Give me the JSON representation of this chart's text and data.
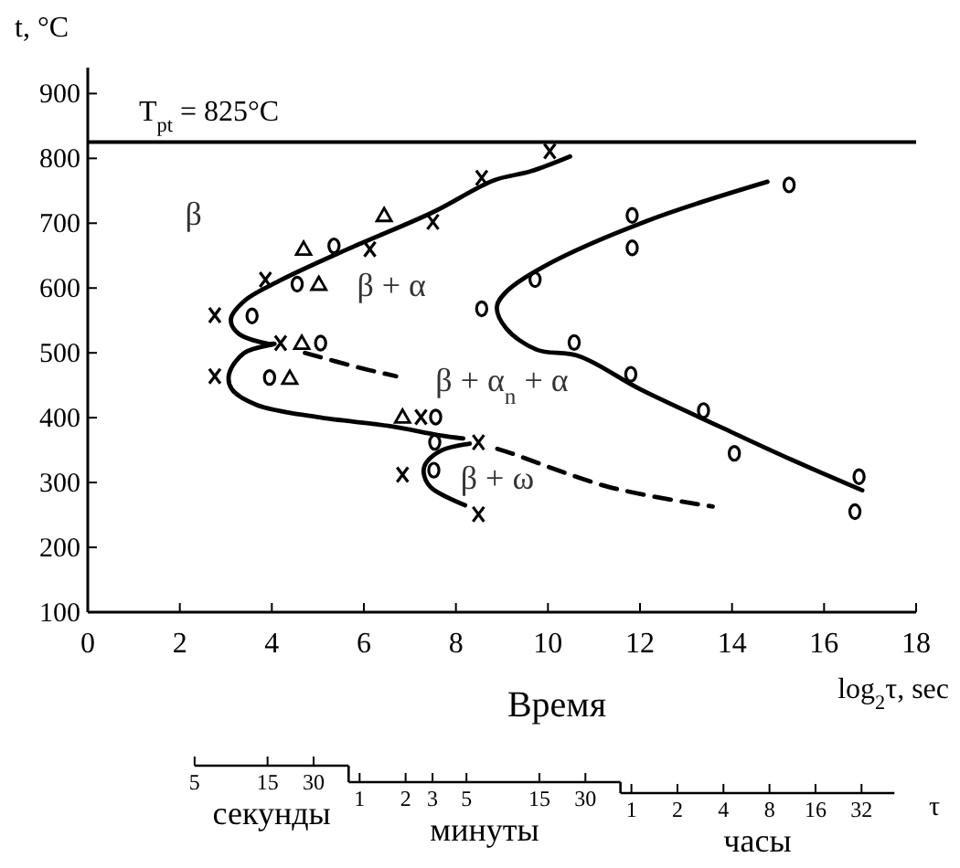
{
  "chart_data": [
    {
      "type": "line",
      "xlabel": "log$_{2}$τ, sec",
      "ylabel": "t, °C",
      "xlim": [
        0,
        18
      ],
      "ylim": [
        100,
        940
      ],
      "xticks": [
        0,
        2,
        4,
        6,
        8,
        10,
        12,
        14,
        16,
        18
      ],
      "yticks": [
        100,
        200,
        300,
        400,
        500,
        600,
        700,
        800,
        900
      ],
      "ref_lines": [
        {
          "axis": "y",
          "value": 825,
          "label": "T$_{pt}$ = 825°C",
          "color": "#000000"
        }
      ],
      "annotations": [
        "Время",
        "β",
        "β + α",
        "β + α$_{n}$ + α",
        "β + ω"
      ],
      "series": [
        {
          "type": "line",
          "color": "#000000",
          "line_style": "solid",
          "marker": "none",
          "x": [
            10.48,
            9.62,
            8.82,
            7.5,
            5.65,
            4.19,
            3.4,
            3.11,
            3.27,
            3.93,
            4.06,
            3.4,
            3.07,
            3.13,
            3.66,
            4.98,
            6.57,
            7.63,
            8.16
          ],
          "values": [
            803,
            780,
            766,
            717,
            660,
            612,
            580,
            552,
            530,
            514,
            514,
            500,
            467,
            444,
            420,
            401,
            387,
            373,
            368
          ]
        },
        {
          "type": "line",
          "color": "#000000",
          "line_style": "solid",
          "marker": "none",
          "x": [
            8.3,
            7.7,
            7.35,
            7.3,
            7.45,
            8.2
          ],
          "values": [
            360,
            350,
            330,
            315,
            293,
            265
          ]
        },
        {
          "type": "line",
          "color": "#000000",
          "line_style": "solid",
          "marker": "none",
          "x": [
            14.77,
            12.13,
            9.88,
            9.09,
            8.89,
            9.09,
            9.75,
            10.67,
            12.0,
            13.71,
            15.3,
            16.83
          ],
          "values": [
            764,
            703,
            632,
            594,
            571,
            538,
            505,
            495,
            444,
            387,
            335,
            288
          ]
        },
        {
          "type": "line",
          "color": "#000000",
          "line_style": "dashed",
          "marker": "none",
          "x": [
            4.72,
            5.91,
            6.7
          ],
          "values": [
            500,
            477,
            464
          ]
        },
        {
          "type": "line",
          "color": "#000000",
          "line_style": "dashed",
          "marker": "none",
          "x": [
            8.9,
            9.21,
            11.33,
            13.58
          ],
          "values": [
            352,
            345,
            293,
            263
          ]
        },
        {
          "type": "scatter",
          "color": "#000000",
          "marker": "cross",
          "x": [
            10.04,
            8.56,
            7.5,
            6.13,
            3.86,
            2.76,
            4.19,
            2.76,
            7.24,
            8.49,
            6.84,
            8.49
          ],
          "values": [
            811,
            770,
            702,
            660,
            613,
            558,
            515,
            464,
            401,
            362,
            312,
            251
          ]
        },
        {
          "type": "scatter",
          "color": "#000000",
          "marker": "circle",
          "x": [
            5.35,
            4.55,
            3.57,
            5.06,
            15.24,
            11.83,
            11.83,
            9.72,
            8.56,
            10.57,
            3.95,
            7.56,
            7.54,
            7.52,
            11.8,
            13.38,
            14.05,
            16.76,
            16.67
          ],
          "values": [
            665,
            606,
            557,
            515,
            759,
            712,
            662,
            613,
            568,
            516,
            462,
            401,
            362,
            319,
            467,
            411,
            345,
            309,
            255
          ]
        },
        {
          "type": "scatter",
          "color": "#000000",
          "marker": "triangle",
          "x": [
            6.44,
            4.69,
            5.02,
            4.65,
            4.39,
            6.84
          ],
          "values": [
            712,
            660,
            606,
            515,
            461,
            401
          ]
        }
      ]
    },
    {
      "type": "other",
      "xlabel": "τ",
      "categories": [
        "5",
        "15",
        "30",
        "1",
        "2",
        "3",
        "5",
        "15",
        "30",
        "1",
        "2",
        "4",
        "8",
        "16",
        "32"
      ],
      "annotations": [
        "секунды",
        "минуты",
        "часы"
      ]
    }
  ]
}
